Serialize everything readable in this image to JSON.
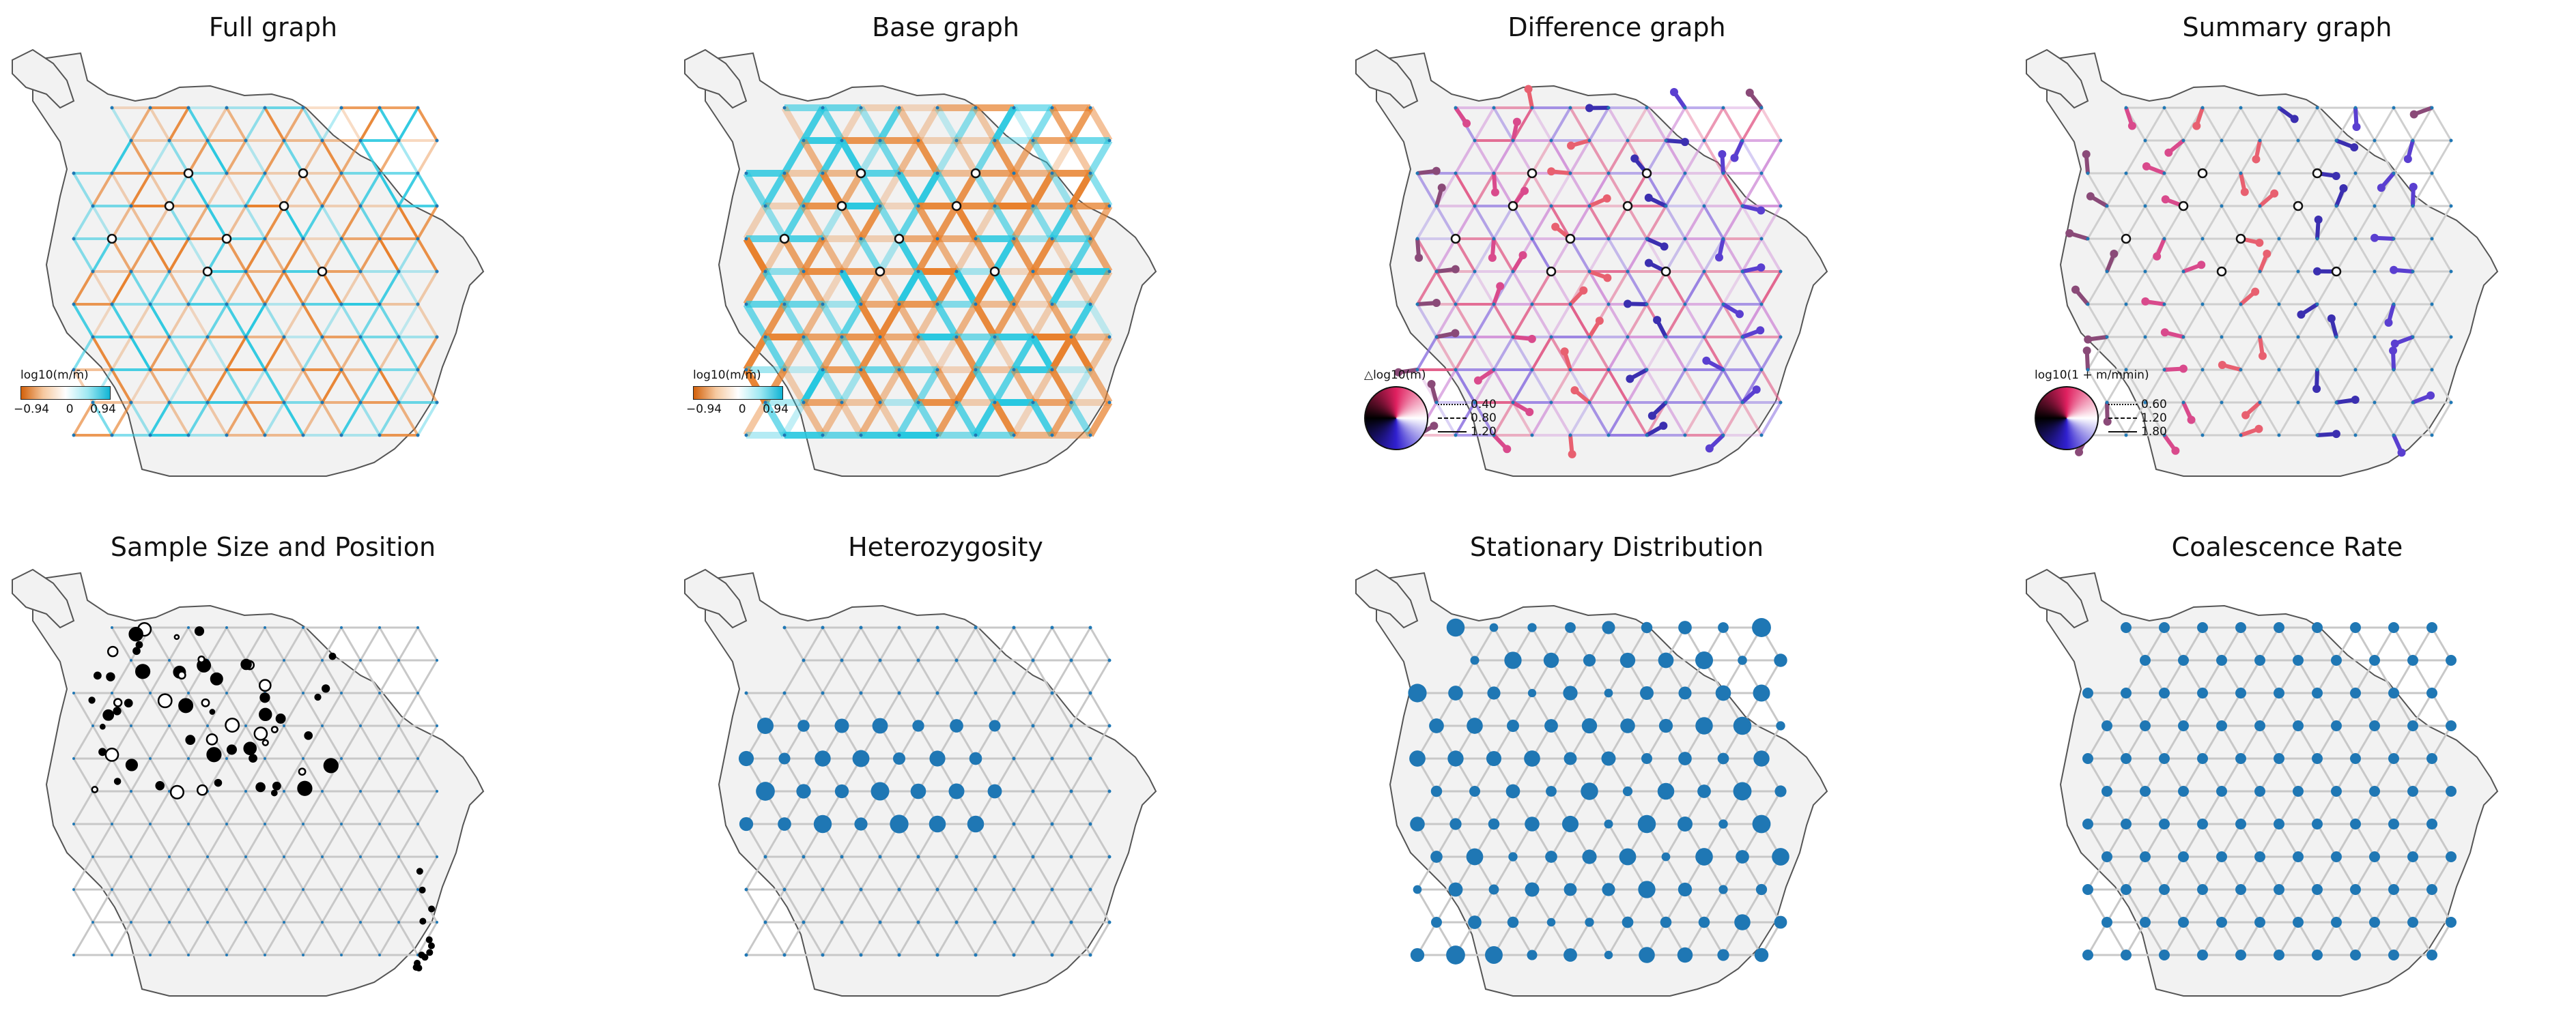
{
  "panels": [
    {
      "title": "Full graph",
      "style": "full"
    },
    {
      "title": "Base graph",
      "style": "base"
    },
    {
      "title": "Difference graph",
      "style": "diff"
    },
    {
      "title": "Summary graph",
      "style": "summary"
    },
    {
      "title": "Sample Size and Position",
      "style": "sample"
    },
    {
      "title": "Heterozygosity",
      "style": "het"
    },
    {
      "title": "Stationary Distribution",
      "style": "stat"
    },
    {
      "title": "Coalescence Rate",
      "style": "coal"
    }
  ],
  "legends": {
    "full": {
      "label": "log10(m/m̄)",
      "ticks": [
        "−0.94",
        "0",
        "0.94"
      ]
    },
    "base": {
      "label": "log10(m/m̄)",
      "ticks": [
        "−0.94",
        "0",
        "0.94"
      ]
    },
    "diff": {
      "label": "△log10(m)",
      "lines": [
        "0.40",
        "0.80",
        "1.20"
      ]
    },
    "summary": {
      "label": "log10(1 + m/mmin)",
      "lines": [
        "0.60",
        "1.20",
        "1.80"
      ]
    }
  },
  "colors": {
    "map_fill": "#f2f2f2",
    "map_edge": "#555555",
    "grid": "#c8c8c8",
    "node": "#1f77b4",
    "orange": "#e8812d",
    "cyan": "#28c8e0",
    "sample": "#000000"
  },
  "icons": {
    "disk": "color-wheel-icon"
  }
}
